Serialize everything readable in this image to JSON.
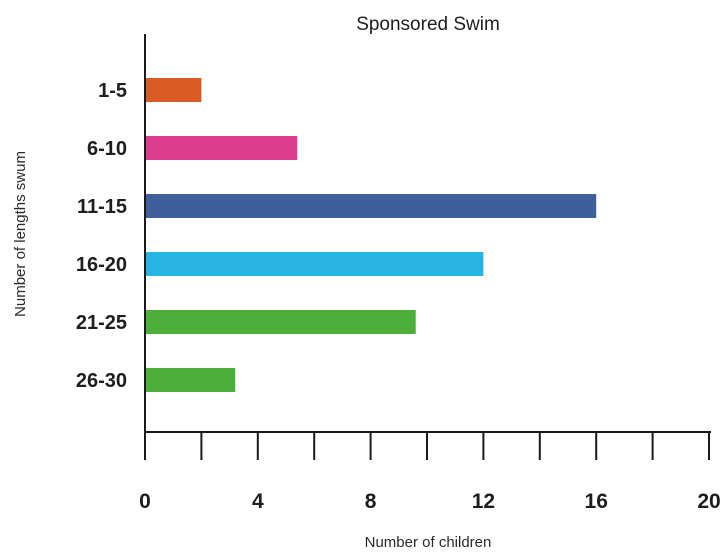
{
  "chart_data": {
    "type": "bar",
    "orientation": "horizontal",
    "title": "Sponsored Swim",
    "xlabel": "Number of children",
    "ylabel": "Number of lengths swum",
    "categories": [
      "1-5",
      "6-10",
      "11-15",
      "16-20",
      "21-25",
      "26-30"
    ],
    "values": [
      2,
      5.4,
      16,
      12,
      9.6,
      3.2
    ],
    "colors": [
      "#d95a24",
      "#dd3d8f",
      "#3f5f9a",
      "#27b4e3",
      "#4caf3a",
      "#4caf3a"
    ],
    "xlim": [
      0,
      20
    ],
    "xticks": [
      0,
      4,
      8,
      12,
      16,
      20
    ],
    "minor_ticks_every": 2,
    "grid": false,
    "legend": "none"
  }
}
